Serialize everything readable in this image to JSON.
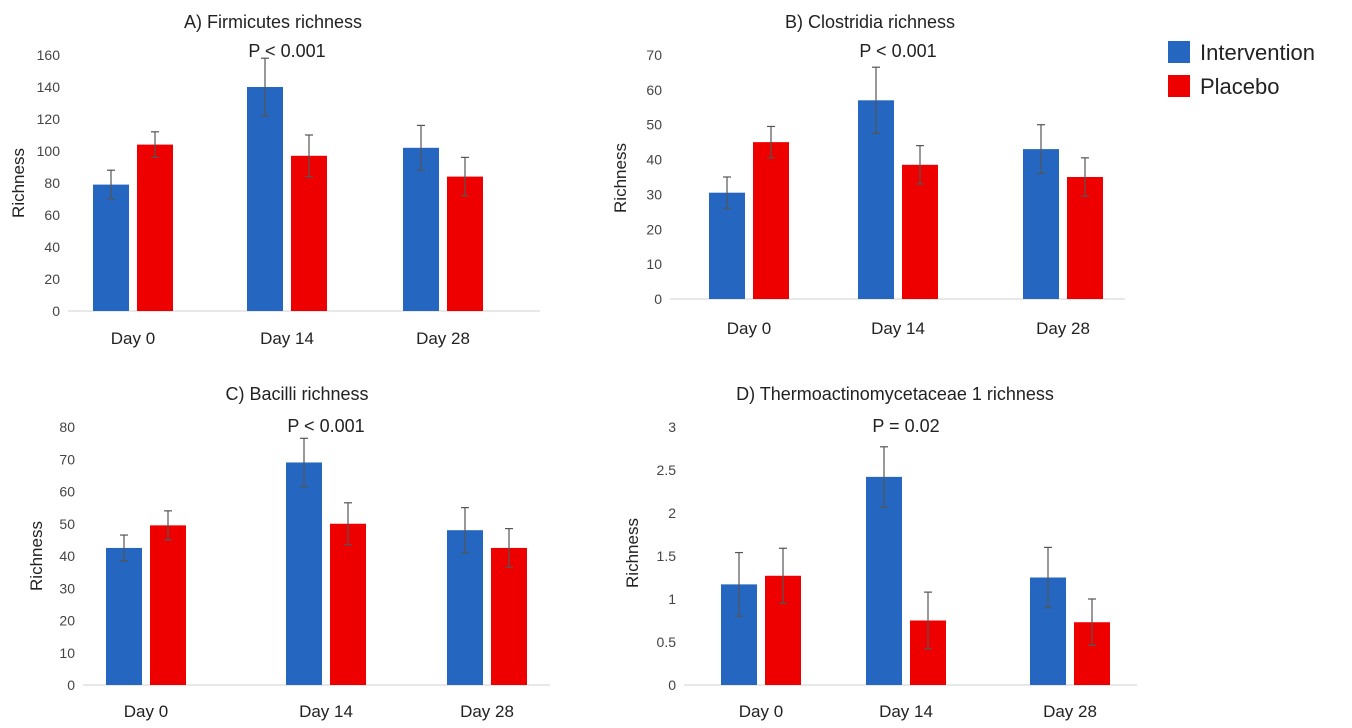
{
  "legend": [
    {
      "label": "Intervention",
      "color": "#2466C0"
    },
    {
      "label": "Placebo",
      "color": "#EE0000"
    }
  ],
  "chart_data": [
    {
      "type": "bar",
      "title": "A) Firmicutes richness",
      "ylabel": "Richness",
      "ylim": [
        0,
        160
      ],
      "yticks": [
        0,
        20,
        40,
        60,
        80,
        100,
        120,
        140,
        160
      ],
      "categories": [
        "Day 0",
        "Day 14",
        "Day 28"
      ],
      "series": [
        {
          "name": "Intervention",
          "values": [
            79,
            140,
            102
          ],
          "errors": [
            9,
            18,
            14
          ]
        },
        {
          "name": "Placebo",
          "values": [
            104,
            97,
            84
          ],
          "errors": [
            8,
            13,
            12
          ]
        }
      ],
      "annotation": {
        "text": "P < 0.001",
        "category": "Day 14"
      }
    },
    {
      "type": "bar",
      "title": "B) Clostridia richness",
      "ylabel": "Richness",
      "ylim": [
        0,
        70
      ],
      "yticks": [
        0,
        10,
        20,
        30,
        40,
        50,
        60,
        70
      ],
      "categories": [
        "Day 0",
        "Day 14",
        "Day 28"
      ],
      "series": [
        {
          "name": "Intervention",
          "values": [
            30.5,
            57,
            43
          ],
          "errors": [
            4.5,
            9.5,
            7
          ]
        },
        {
          "name": "Placebo",
          "values": [
            45,
            38.5,
            35
          ],
          "errors": [
            4.5,
            5.5,
            5.5
          ]
        }
      ],
      "annotation": {
        "text": "P < 0.001",
        "category": "Day 14"
      }
    },
    {
      "type": "bar",
      "title": "C) Bacilli richness",
      "ylabel": "Richness",
      "ylim": [
        0,
        80
      ],
      "yticks": [
        0,
        10,
        20,
        30,
        40,
        50,
        60,
        70,
        80
      ],
      "categories": [
        "Day 0",
        "Day 14",
        "Day 28"
      ],
      "series": [
        {
          "name": "Intervention",
          "values": [
            42.5,
            69,
            48
          ],
          "errors": [
            4,
            7.5,
            7
          ]
        },
        {
          "name": "Placebo",
          "values": [
            49.5,
            50,
            42.5
          ],
          "errors": [
            4.5,
            6.5,
            6
          ]
        }
      ],
      "annotation": {
        "text": "P < 0.001",
        "category": "Day 14"
      }
    },
    {
      "type": "bar",
      "title": "D) Thermoactinomycetaceae 1 richness",
      "ylabel": "Richness",
      "ylim": [
        0,
        3
      ],
      "yticks": [
        "0",
        "0.5",
        "1",
        "1.5",
        "2",
        "2.5",
        "3"
      ],
      "categories": [
        "Day 0",
        "Day 14",
        "Day 28"
      ],
      "series": [
        {
          "name": "Intervention",
          "values": [
            1.17,
            2.42,
            1.25
          ],
          "errors": [
            0.37,
            0.35,
            0.35
          ]
        },
        {
          "name": "Placebo",
          "values": [
            1.27,
            0.75,
            0.73
          ],
          "errors": [
            0.32,
            0.33,
            0.27
          ]
        }
      ],
      "annotation": {
        "text": "P = 0.02",
        "category": "Day 14"
      }
    }
  ]
}
